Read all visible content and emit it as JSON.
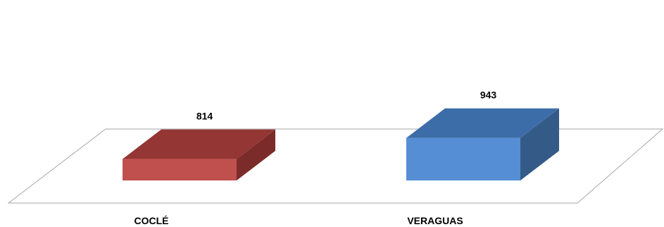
{
  "chart_data": {
    "type": "bar",
    "title": "",
    "xlabel": "",
    "ylabel": "",
    "categories": [
      "COCLÉ",
      "VERAGUAS"
    ],
    "values": [
      814,
      943
    ],
    "data_labels": [
      "814",
      "943"
    ],
    "colors": {
      "COCLÉ": {
        "front": "#c0504d",
        "top": "#943634",
        "side": "#7b2c2a"
      },
      "VERAGUAS": {
        "front": "#558ed5",
        "top": "#3d6da8",
        "side": "#345b88"
      }
    },
    "floor_color": "#a6a6a6",
    "grid": false,
    "legend": "none",
    "style": "3d-column"
  }
}
